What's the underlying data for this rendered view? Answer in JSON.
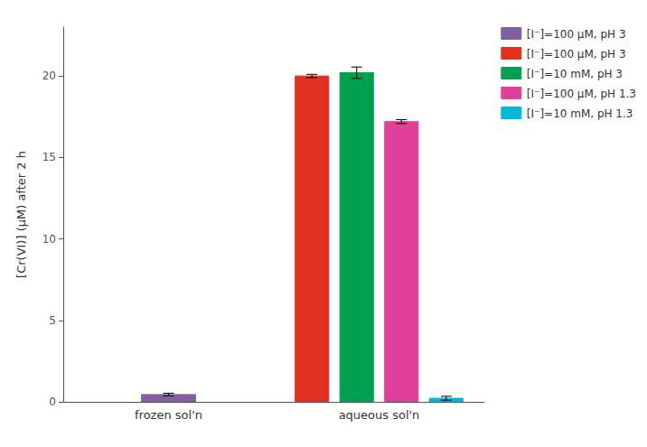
{
  "chart_data": {
    "type": "bar",
    "ylabel": "[Cr(VI)] (μM) after 2 h",
    "categories": [
      "frozen sol'n",
      "aqueous sol'n"
    ],
    "series": [
      {
        "name": "[I⁻]=100 μM, pH 3",
        "color": "#8060a0",
        "values": [
          0.45,
          null
        ],
        "errors": [
          0.08,
          null
        ]
      },
      {
        "name": "[I⁻]=100 μM, pH 3",
        "color": "#e03020",
        "values": [
          null,
          20.0
        ],
        "errors": [
          null,
          0.1
        ]
      },
      {
        "name": "[I⁻]=10 mM, pH 3",
        "color": "#00a050",
        "values": [
          null,
          20.2
        ],
        "errors": [
          null,
          0.35
        ]
      },
      {
        "name": "[I⁻]=100 μM, pH 1.3",
        "color": "#e0409a",
        "values": [
          null,
          17.2
        ],
        "errors": [
          null,
          0.12
        ]
      },
      {
        "name": "[I⁻]=10 mM, pH 1.3",
        "color": "#00b8d8",
        "values": [
          null,
          0.22
        ],
        "errors": [
          null,
          0.12
        ]
      }
    ],
    "ylim": [
      0,
      23
    ],
    "yticks": [
      0,
      5,
      10,
      15,
      20
    ],
    "grid": false,
    "legend": "upper right"
  }
}
